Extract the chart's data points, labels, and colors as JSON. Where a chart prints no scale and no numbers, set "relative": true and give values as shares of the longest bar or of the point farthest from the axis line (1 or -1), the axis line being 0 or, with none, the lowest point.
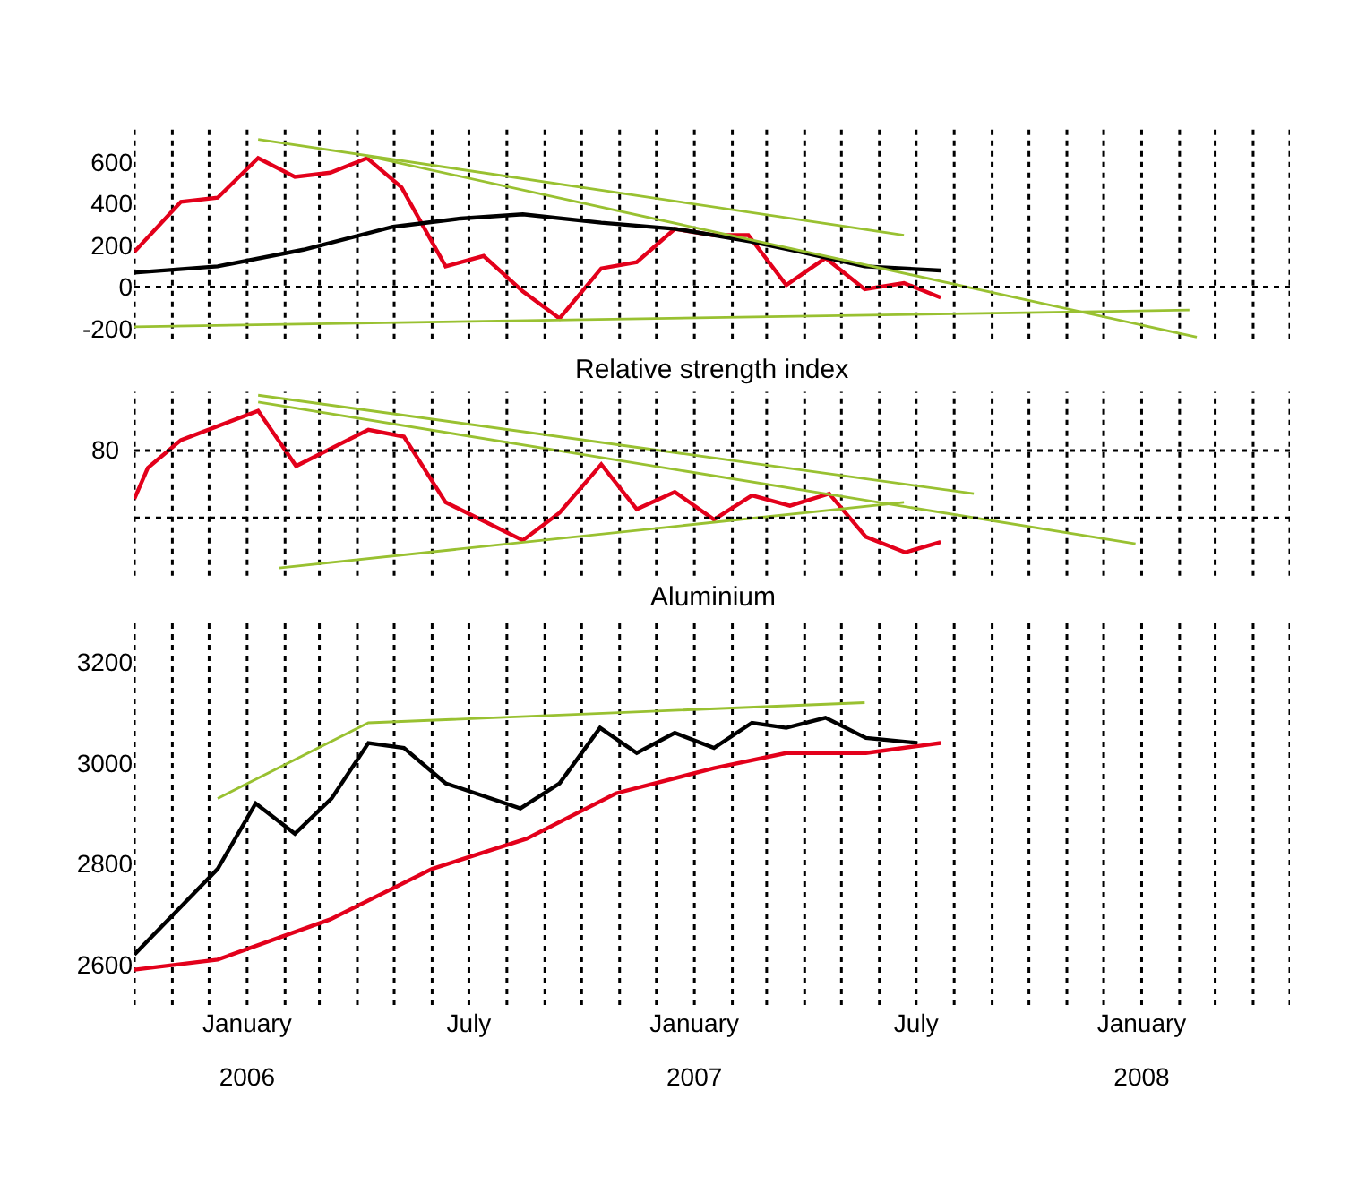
{
  "chart_data": [
    {
      "type": "line",
      "xlim": [
        "2005-10-01",
        "2008-05-01"
      ],
      "ylim": [
        -250,
        760
      ],
      "yticks": [
        600,
        400,
        200,
        0,
        -200
      ],
      "xticks": [
        "2005-10-01",
        "2005-11-01",
        "2005-12-01",
        "2006-01-01",
        "2006-02-01",
        "2006-03-01",
        "2006-04-01",
        "2006-05-01",
        "2006-06-01",
        "2006-07-01",
        "2006-08-01",
        "2006-09-01",
        "2006-10-01",
        "2006-11-01",
        "2006-12-01",
        "2007-01-01",
        "2007-02-01",
        "2007-03-01",
        "2007-04-01",
        "2007-05-01",
        "2007-06-01",
        "2007-07-01",
        "2007-08-01",
        "2007-09-01",
        "2007-10-01",
        "2007-11-01",
        "2007-12-01",
        "2008-01-01",
        "2008-02-01",
        "2008-03-01",
        "2008-04-01",
        "2008-05-01"
      ],
      "tick_labels": "y",
      "grid": "x",
      "line_style": "solid",
      "marker": "none",
      "ref_lines": [
        {
          "axis": "y",
          "value": 0,
          "line_style": "dotted"
        }
      ],
      "series": [
        {
          "color": "#e3001b",
          "x": [
            "2005-10-01",
            "2005-11-08",
            "2005-12-08",
            "2006-01-10",
            "2006-02-09",
            "2006-03-10",
            "2006-04-09",
            "2006-05-07",
            "2006-06-12",
            "2006-07-13",
            "2006-08-14",
            "2006-09-13",
            "2006-10-17",
            "2006-11-15",
            "2006-12-16",
            "2007-01-16",
            "2007-02-14",
            "2007-03-17",
            "2007-04-18",
            "2007-05-20",
            "2007-06-21",
            "2007-07-21"
          ],
          "values": [
            170,
            410,
            430,
            620,
            530,
            550,
            620,
            480,
            100,
            150,
            -20,
            -150,
            90,
            120,
            280,
            250,
            250,
            10,
            140,
            -10,
            20,
            -50
          ]
        },
        {
          "color": "#000000",
          "x": [
            "2005-10-01",
            "2005-12-08",
            "2006-02-16",
            "2006-04-30",
            "2006-06-24",
            "2006-08-14",
            "2006-10-17",
            "2006-12-17",
            "2007-02-16",
            "2007-03-28",
            "2007-05-20",
            "2007-07-21"
          ],
          "values": [
            70,
            100,
            180,
            290,
            330,
            350,
            310,
            280,
            220,
            170,
            100,
            80
          ]
        },
        {
          "color": "#99c131",
          "x": [
            "2006-01-10",
            "2007-06-21"
          ],
          "values": [
            710,
            250
          ]
        },
        {
          "color": "#99c131",
          "x": [
            "2006-04-09",
            "2008-02-15"
          ],
          "values": [
            630,
            -240
          ]
        },
        {
          "color": "#99c131",
          "x": [
            "2005-10-01",
            "2008-02-09"
          ],
          "values": [
            -190,
            -110
          ]
        }
      ]
    },
    {
      "type": "line",
      "relative": true,
      "title": "Relative strength index",
      "xlim": [
        "2005-10-01",
        "2008-05-01"
      ],
      "xticks": [
        "2005-10-01",
        "2005-11-01",
        "2005-12-01",
        "2006-01-01",
        "2006-02-01",
        "2006-03-01",
        "2006-04-01",
        "2006-05-01",
        "2006-06-01",
        "2006-07-01",
        "2006-08-01",
        "2006-09-01",
        "2006-10-01",
        "2006-11-01",
        "2006-12-01",
        "2007-01-01",
        "2007-02-01",
        "2007-03-01",
        "2007-04-01",
        "2007-05-01",
        "2007-06-01",
        "2007-07-01",
        "2007-08-01",
        "2007-09-01",
        "2007-10-01",
        "2007-11-01",
        "2007-12-01",
        "2008-01-01",
        "2008-02-01",
        "2008-03-01",
        "2008-04-01",
        "2008-05-01"
      ],
      "tick_labels": false,
      "grid": "x",
      "line_style": "solid",
      "marker": "none",
      "annotations": [
        "80"
      ],
      "ref_lines": [
        {
          "axis": "y",
          "value": 0.68,
          "line_style": "dotted"
        },
        {
          "axis": "y",
          "value": 0.29,
          "line_style": "dotted"
        }
      ],
      "series": [
        {
          "color": "#e3001b",
          "x": [
            "2005-10-01",
            "2005-10-12",
            "2005-11-08",
            "2006-01-10",
            "2006-02-10",
            "2006-04-10",
            "2006-05-09",
            "2006-06-12",
            "2006-08-14",
            "2006-09-13",
            "2006-10-17",
            "2006-11-15",
            "2006-12-16",
            "2007-01-17",
            "2007-02-17",
            "2007-03-20",
            "2007-04-21",
            "2007-05-21",
            "2007-06-22",
            "2007-07-21"
          ],
          "values": [
            0.4,
            0.58,
            0.74,
            0.91,
            0.59,
            0.8,
            0.76,
            0.38,
            0.16,
            0.32,
            0.6,
            0.34,
            0.44,
            0.28,
            0.42,
            0.36,
            0.43,
            0.18,
            0.09,
            0.15
          ]
        },
        {
          "color": "#99c131",
          "x": [
            "2006-01-10",
            "2007-08-17"
          ],
          "values": [
            1,
            0.43
          ]
        },
        {
          "color": "#99c131",
          "x": [
            "2006-01-10",
            "2007-12-27"
          ],
          "values": [
            0.96,
            0.14
          ]
        },
        {
          "color": "#99c131",
          "x": [
            "2006-01-27",
            "2007-06-21"
          ],
          "values": [
            0,
            0.38
          ]
        }
      ]
    },
    {
      "type": "line",
      "title": "Aluminium",
      "xlim": [
        "2005-10-01",
        "2008-05-01"
      ],
      "ylim": [
        2520,
        3285
      ],
      "yticks": [
        3200,
        3000,
        2800,
        2600
      ],
      "xticks": [
        {
          "value": "2005-10-01",
          "label": null
        },
        {
          "value": "2005-11-01",
          "label": null
        },
        {
          "value": "2005-12-01",
          "label": null
        },
        {
          "value": "2006-01-01",
          "label": "January"
        },
        {
          "value": "2006-02-01",
          "label": null
        },
        {
          "value": "2006-03-01",
          "label": null
        },
        {
          "value": "2006-04-01",
          "label": null
        },
        {
          "value": "2006-05-01",
          "label": null
        },
        {
          "value": "2006-06-01",
          "label": null
        },
        {
          "value": "2006-07-01",
          "label": "July"
        },
        {
          "value": "2006-08-01",
          "label": null
        },
        {
          "value": "2006-09-01",
          "label": null
        },
        {
          "value": "2006-10-01",
          "label": null
        },
        {
          "value": "2006-11-01",
          "label": null
        },
        {
          "value": "2006-12-01",
          "label": null
        },
        {
          "value": "2007-01-01",
          "label": "January"
        },
        {
          "value": "2007-02-01",
          "label": null
        },
        {
          "value": "2007-03-01",
          "label": null
        },
        {
          "value": "2007-04-01",
          "label": null
        },
        {
          "value": "2007-05-01",
          "label": null
        },
        {
          "value": "2007-06-01",
          "label": null
        },
        {
          "value": "2007-07-01",
          "label": "July"
        },
        {
          "value": "2007-08-01",
          "label": null
        },
        {
          "value": "2007-09-01",
          "label": null
        },
        {
          "value": "2007-10-01",
          "label": null
        },
        {
          "value": "2007-11-01",
          "label": null
        },
        {
          "value": "2007-12-01",
          "label": null
        },
        {
          "value": "2008-01-01",
          "label": "January"
        },
        {
          "value": "2008-02-01",
          "label": null
        },
        {
          "value": "2008-03-01",
          "label": null
        },
        {
          "value": "2008-04-01",
          "label": null
        },
        {
          "value": "2008-05-01",
          "label": null
        }
      ],
      "x2lim": [
        "2005-10-01",
        "2008-05-01"
      ],
      "x2ticks": [
        {
          "value": "2006-01-01",
          "label": "2006"
        },
        {
          "value": "2007-01-01",
          "label": "2007"
        },
        {
          "value": "2008-01-01",
          "label": "2008"
        }
      ],
      "grid": "x",
      "line_style": "solid",
      "marker": "none",
      "series": [
        {
          "color": "#000000",
          "x": [
            "2005-10-01",
            "2005-12-08",
            "2006-01-08",
            "2006-02-09",
            "2006-03-11",
            "2006-04-10",
            "2006-05-09",
            "2006-06-12",
            "2006-08-12",
            "2006-09-13",
            "2006-10-16",
            "2006-11-15",
            "2006-12-16",
            "2007-01-17",
            "2007-02-17",
            "2007-03-17",
            "2007-04-18",
            "2007-05-21",
            "2007-07-02"
          ],
          "values": [
            2620,
            2790,
            2920,
            2860,
            2930,
            3040,
            3030,
            2960,
            2910,
            2960,
            3070,
            3020,
            3060,
            3030,
            3080,
            3070,
            3090,
            3050,
            3040
          ]
        },
        {
          "color": "#e3001b",
          "x": [
            "2005-10-01",
            "2005-12-08",
            "2006-03-10",
            "2006-06-01",
            "2006-08-17",
            "2006-10-29",
            "2007-01-17",
            "2007-03-17",
            "2007-05-21",
            "2007-07-21"
          ],
          "values": [
            2590,
            2610,
            2690,
            2790,
            2850,
            2940,
            2990,
            3020,
            3020,
            3040
          ]
        },
        {
          "color": "#99c131",
          "x": [
            "2005-12-08",
            "2006-04-10",
            "2007-05-20"
          ],
          "values": [
            2930,
            3080,
            3120
          ]
        }
      ]
    }
  ]
}
